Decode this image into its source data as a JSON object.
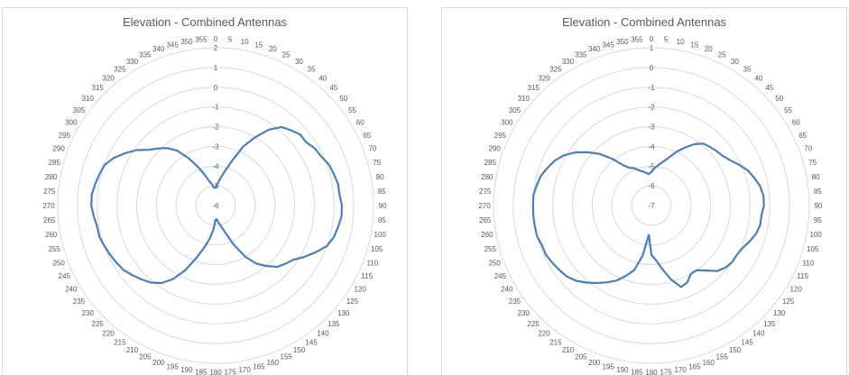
{
  "chart_data": [
    {
      "type": "radar",
      "title": "Elevation - Combined Antennas",
      "angle_labels": [
        "0",
        "5",
        "10",
        "15",
        "20",
        "25",
        "30",
        "35",
        "40",
        "45",
        "50",
        "55",
        "60",
        "65",
        "70",
        "75",
        "80",
        "85",
        "90",
        "95",
        "100",
        "105",
        "110",
        "115",
        "120",
        "125",
        "130",
        "135",
        "140",
        "145",
        "150",
        "155",
        "160",
        "165",
        "170",
        "175",
        "180",
        "185",
        "190",
        "195",
        "200",
        "205",
        "210",
        "215",
        "220",
        "225",
        "230",
        "235",
        "240",
        "245",
        "250",
        "255",
        "260",
        "265",
        "270",
        "275",
        "280",
        "285",
        "290",
        "295",
        "300",
        "305",
        "310",
        "315",
        "320",
        "325",
        "330",
        "335",
        "340",
        "345",
        "350",
        "355"
      ],
      "radial_labels": [
        "2",
        "1",
        "0",
        "-1",
        "-2",
        "-3",
        "-4",
        "-5",
        "-6"
      ],
      "rlim": [
        -6,
        2
      ],
      "series": [
        {
          "color": "#4a7ebb",
          "values": [
            -5.1,
            -4.9,
            -4.6,
            -4.2,
            -3.6,
            -2.7,
            -2.0,
            -1.3,
            -0.8,
            -0.6,
            -0.4,
            -0.4,
            -0.2,
            -0.1,
            0.1,
            0.2,
            0.3,
            0.3,
            0.4,
            0.4,
            0.3,
            0.2,
            0.0,
            -0.4,
            -0.8,
            -1.2,
            -1.4,
            -1.6,
            -2.0,
            -2.4,
            -3.0,
            -3.8,
            -4.5,
            -4.9,
            -5.1,
            -5.3,
            -5.3,
            -4.8,
            -4.3,
            -3.8,
            -3.2,
            -2.4,
            -1.7,
            -1.2,
            -0.9,
            -0.7,
            -0.5,
            -0.3,
            -0.2,
            -0.1,
            0.0,
            0.1,
            0.1,
            0.2,
            0.3,
            0.3,
            0.2,
            0.1,
            0.0,
            -0.3,
            -0.7,
            -1.1,
            -1.6,
            -1.9,
            -2.2,
            -2.6,
            -3.2,
            -3.8,
            -4.3,
            -4.7,
            -4.9,
            -5.1
          ]
        }
      ]
    },
    {
      "type": "radar",
      "title": "Elevation - Combined Antennas",
      "angle_labels": [
        "0",
        "5",
        "10",
        "15",
        "20",
        "25",
        "30",
        "35",
        "40",
        "45",
        "50",
        "55",
        "60",
        "65",
        "70",
        "75",
        "80",
        "85",
        "90",
        "95",
        "100",
        "105",
        "110",
        "115",
        "120",
        "125",
        "130",
        "135",
        "140",
        "145",
        "150",
        "155",
        "160",
        "165",
        "170",
        "175",
        "180",
        "185",
        "190",
        "195",
        "200",
        "205",
        "210",
        "215",
        "220",
        "225",
        "230",
        "235",
        "240",
        "245",
        "250",
        "255",
        "260",
        "265",
        "270",
        "275",
        "280",
        "285",
        "290",
        "295",
        "300",
        "305",
        "310",
        "315",
        "320",
        "325",
        "330",
        "335",
        "340",
        "345",
        "350",
        "355"
      ],
      "radial_labels": [
        "1",
        "0",
        "-1",
        "-2",
        "-3",
        "-4",
        "-5",
        "-6",
        "-7"
      ],
      "rlim": [
        -7,
        1
      ],
      "series": [
        {
          "color": "#4a7ebb",
          "values": [
            -5.3,
            -5.1,
            -4.9,
            -4.7,
            -4.4,
            -4.0,
            -3.6,
            -3.2,
            -2.9,
            -2.8,
            -2.7,
            -2.6,
            -2.4,
            -2.1,
            -1.8,
            -1.6,
            -1.4,
            -1.3,
            -1.3,
            -1.4,
            -1.4,
            -1.5,
            -1.7,
            -1.9,
            -2.0,
            -2.0,
            -2.1,
            -2.3,
            -2.7,
            -3.0,
            -3.0,
            -2.7,
            -2.6,
            -3.1,
            -3.7,
            -4.2,
            -4.5,
            -5.5,
            -4.4,
            -3.6,
            -3.2,
            -2.8,
            -2.5,
            -2.2,
            -1.9,
            -1.6,
            -1.4,
            -1.3,
            -1.2,
            -1.1,
            -1.1,
            -1.0,
            -1.0,
            -1.0,
            -1.0,
            -1.0,
            -1.1,
            -1.2,
            -1.4,
            -1.6,
            -1.9,
            -2.3,
            -2.8,
            -3.3,
            -3.9,
            -4.5,
            -4.8,
            -4.9,
            -5.1,
            -5.2,
            -5.3,
            -5.4
          ]
        }
      ]
    }
  ]
}
